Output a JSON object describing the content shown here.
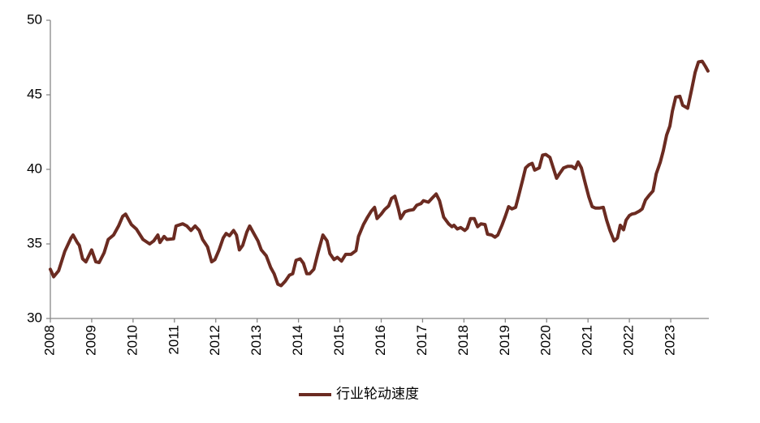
{
  "chart_data": {
    "type": "line",
    "x": [
      2008.0,
      2008.08,
      2008.2,
      2008.35,
      2008.5,
      2008.55,
      2008.65,
      2008.7,
      2008.78,
      2008.86,
      2009.0,
      2009.1,
      2009.18,
      2009.3,
      2009.4,
      2009.53,
      2009.65,
      2009.75,
      2009.82,
      2009.96,
      2010.08,
      2010.24,
      2010.4,
      2010.5,
      2010.6,
      2010.65,
      2010.75,
      2010.82,
      2010.98,
      2011.04,
      2011.2,
      2011.3,
      2011.4,
      2011.5,
      2011.6,
      2011.68,
      2011.8,
      2011.9,
      2011.98,
      2012.08,
      2012.18,
      2012.25,
      2012.33,
      2012.43,
      2012.5,
      2012.57,
      2012.65,
      2012.75,
      2012.82,
      2012.92,
      2013.02,
      2013.1,
      2013.22,
      2013.33,
      2013.41,
      2013.5,
      2013.58,
      2013.68,
      2013.78,
      2013.86,
      2013.94,
      2014.04,
      2014.12,
      2014.2,
      2014.27,
      2014.37,
      2014.47,
      2014.59,
      2014.69,
      2014.76,
      2014.86,
      2014.94,
      2015.04,
      2015.14,
      2015.27,
      2015.39,
      2015.45,
      2015.57,
      2015.67,
      2015.76,
      2015.84,
      2015.9,
      2016.0,
      2016.08,
      2016.18,
      2016.25,
      2016.33,
      2016.41,
      2016.47,
      2016.57,
      2016.67,
      2016.78,
      2016.86,
      2016.96,
      2017.02,
      2017.14,
      2017.24,
      2017.33,
      2017.41,
      2017.51,
      2017.63,
      2017.71,
      2017.76,
      2017.84,
      2017.92,
      2018.02,
      2018.08,
      2018.16,
      2018.25,
      2018.33,
      2018.41,
      2018.51,
      2018.57,
      2018.67,
      2018.75,
      2018.82,
      2018.92,
      2019.0,
      2019.08,
      2019.16,
      2019.25,
      2019.33,
      2019.43,
      2019.49,
      2019.57,
      2019.65,
      2019.71,
      2019.82,
      2019.9,
      2019.98,
      2020.08,
      2020.16,
      2020.24,
      2020.31,
      2020.41,
      2020.51,
      2020.61,
      2020.69,
      2020.76,
      2020.84,
      2020.94,
      2021.02,
      2021.1,
      2021.18,
      2021.27,
      2021.37,
      2021.45,
      2021.53,
      2021.63,
      2021.71,
      2021.78,
      2021.86,
      2021.92,
      2022.0,
      2022.06,
      2022.14,
      2022.24,
      2022.31,
      2022.39,
      2022.49,
      2022.57,
      2022.65,
      2022.75,
      2022.82,
      2022.9,
      2022.98,
      2023.04,
      2023.12,
      2023.22,
      2023.29,
      2023.41,
      2023.51,
      2023.59,
      2023.67,
      2023.76,
      2023.84,
      2023.9
    ],
    "series": [
      {
        "name": "行业轮动速度",
        "color": "#6b2b21",
        "values": [
          33.3,
          32.8,
          33.2,
          34.5,
          35.4,
          35.6,
          35.1,
          34.9,
          34.0,
          33.8,
          34.6,
          33.8,
          33.75,
          34.4,
          35.3,
          35.6,
          36.2,
          36.85,
          37.0,
          36.3,
          36.0,
          35.3,
          35.0,
          35.2,
          35.6,
          35.1,
          35.5,
          35.3,
          35.35,
          36.2,
          36.35,
          36.2,
          35.9,
          36.2,
          35.9,
          35.3,
          34.8,
          33.8,
          33.95,
          34.6,
          35.4,
          35.7,
          35.55,
          35.9,
          35.6,
          34.6,
          34.9,
          35.8,
          36.2,
          35.7,
          35.2,
          34.6,
          34.2,
          33.4,
          33.0,
          32.3,
          32.2,
          32.5,
          32.9,
          33.0,
          33.9,
          34.0,
          33.7,
          33.0,
          33.0,
          33.3,
          34.4,
          35.6,
          35.2,
          34.35,
          33.95,
          34.1,
          33.85,
          34.3,
          34.3,
          34.55,
          35.5,
          36.3,
          36.8,
          37.2,
          37.45,
          36.7,
          37.0,
          37.3,
          37.55,
          38.05,
          38.2,
          37.4,
          36.7,
          37.15,
          37.25,
          37.3,
          37.6,
          37.7,
          37.9,
          37.8,
          38.1,
          38.35,
          37.9,
          36.8,
          36.35,
          36.15,
          36.25,
          36.0,
          36.1,
          35.9,
          36.05,
          36.7,
          36.7,
          36.15,
          36.35,
          36.3,
          35.65,
          35.6,
          35.45,
          35.6,
          36.25,
          36.85,
          37.5,
          37.35,
          37.45,
          38.3,
          39.4,
          40.1,
          40.3,
          40.4,
          39.95,
          40.1,
          40.95,
          41.0,
          40.8,
          40.1,
          39.4,
          39.7,
          40.1,
          40.2,
          40.2,
          40.05,
          40.5,
          40.1,
          39.0,
          38.15,
          37.5,
          37.4,
          37.4,
          37.45,
          36.6,
          35.9,
          35.2,
          35.4,
          36.25,
          35.95,
          36.6,
          36.9,
          37.0,
          37.05,
          37.2,
          37.35,
          37.95,
          38.3,
          38.55,
          39.7,
          40.5,
          41.25,
          42.3,
          42.9,
          43.9,
          44.85,
          44.9,
          44.3,
          44.1,
          45.4,
          46.5,
          47.2,
          47.25,
          46.9,
          46.6
        ]
      }
    ],
    "xlim": [
      2008,
      2024
    ],
    "xticks": [
      2008,
      2009,
      2010,
      2011,
      2012,
      2013,
      2014,
      2015,
      2016,
      2017,
      2018,
      2019,
      2020,
      2021,
      2022,
      2023
    ],
    "ylim": [
      30,
      50
    ],
    "yticks": [
      30,
      35,
      40,
      45,
      50
    ],
    "grid": false
  }
}
